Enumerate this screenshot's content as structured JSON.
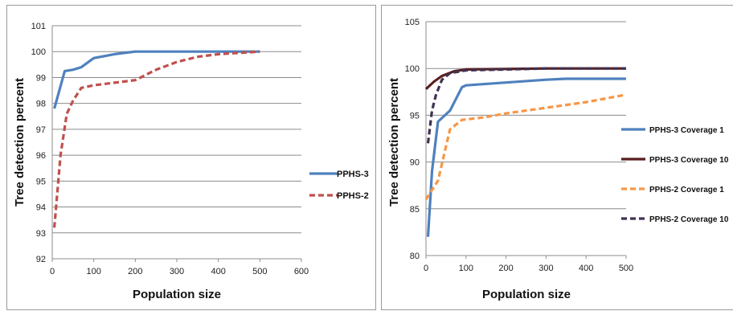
{
  "chart_data": [
    {
      "type": "line",
      "xlabel": "Population size",
      "ylabel": "Tree detection percent",
      "xlim": [
        0,
        600
      ],
      "ylim": [
        92,
        101
      ],
      "xticks": [
        0,
        100,
        200,
        300,
        400,
        500,
        600
      ],
      "yticks": [
        92,
        93,
        94,
        95,
        96,
        97,
        98,
        99,
        100,
        101
      ],
      "grid": "horizontal",
      "legend": "right",
      "series": [
        {
          "name": "PPHS-3",
          "color": "#4f81bd",
          "dash": "solid",
          "points": [
            [
              5,
              97.8
            ],
            [
              30,
              99.25
            ],
            [
              50,
              99.3
            ],
            [
              70,
              99.4
            ],
            [
              100,
              99.75
            ],
            [
              150,
              99.9
            ],
            [
              200,
              100
            ],
            [
              300,
              100
            ],
            [
              400,
              100
            ],
            [
              500,
              100
            ]
          ]
        },
        {
          "name": "PPHS-2",
          "color": "#c0504d",
          "dash": "dashed",
          "points": [
            [
              5,
              93.2
            ],
            [
              20,
              96
            ],
            [
              35,
              97.6
            ],
            [
              50,
              98.1
            ],
            [
              70,
              98.6
            ],
            [
              100,
              98.7
            ],
            [
              150,
              98.8
            ],
            [
              200,
              98.9
            ],
            [
              250,
              99.3
            ],
            [
              300,
              99.6
            ],
            [
              350,
              99.8
            ],
            [
              400,
              99.9
            ],
            [
              500,
              100
            ]
          ]
        }
      ]
    },
    {
      "type": "line",
      "xlabel": "Population size",
      "ylabel": "Tree detection percent",
      "xlim": [
        0,
        500
      ],
      "ylim": [
        80,
        105
      ],
      "xticks": [
        0,
        100,
        200,
        300,
        400,
        500
      ],
      "yticks": [
        80,
        85,
        90,
        95,
        100,
        105
      ],
      "grid": "horizontal",
      "legend": "right",
      "series": [
        {
          "name": "PPHS-3 Coverage 1",
          "color": "#4f81bd",
          "dash": "solid",
          "points": [
            [
              5,
              82
            ],
            [
              15,
              89
            ],
            [
              30,
              94.3
            ],
            [
              60,
              95.5
            ],
            [
              90,
              98
            ],
            [
              100,
              98.2
            ],
            [
              200,
              98.5
            ],
            [
              300,
              98.8
            ],
            [
              350,
              98.9
            ],
            [
              500,
              98.9
            ]
          ]
        },
        {
          "name": "PPHS-3 Coverage 10",
          "color": "#5b1f1f",
          "dash": "solid",
          "points": [
            [
              0,
              97.8
            ],
            [
              20,
              98.6
            ],
            [
              40,
              99.2
            ],
            [
              70,
              99.7
            ],
            [
              100,
              99.9
            ],
            [
              200,
              99.95
            ],
            [
              300,
              100
            ],
            [
              500,
              100
            ]
          ]
        },
        {
          "name": "PPHS-2 Coverage 1",
          "color": "#f79646",
          "dash": "dashed",
          "points": [
            [
              0,
              86
            ],
            [
              30,
              88
            ],
            [
              60,
              93.5
            ],
            [
              90,
              94.5
            ],
            [
              150,
              94.8
            ],
            [
              200,
              95.2
            ],
            [
              300,
              95.8
            ],
            [
              400,
              96.4
            ],
            [
              500,
              97.2
            ]
          ]
        },
        {
          "name": "PPHS-2 Coverage 10",
          "color": "#403152",
          "dash": "dashed",
          "points": [
            [
              5,
              92
            ],
            [
              15,
              95.5
            ],
            [
              25,
              97.2
            ],
            [
              40,
              98.8
            ],
            [
              60,
              99.5
            ],
            [
              100,
              99.8
            ],
            [
              200,
              99.9
            ],
            [
              300,
              100
            ],
            [
              500,
              100
            ]
          ]
        }
      ]
    }
  ]
}
